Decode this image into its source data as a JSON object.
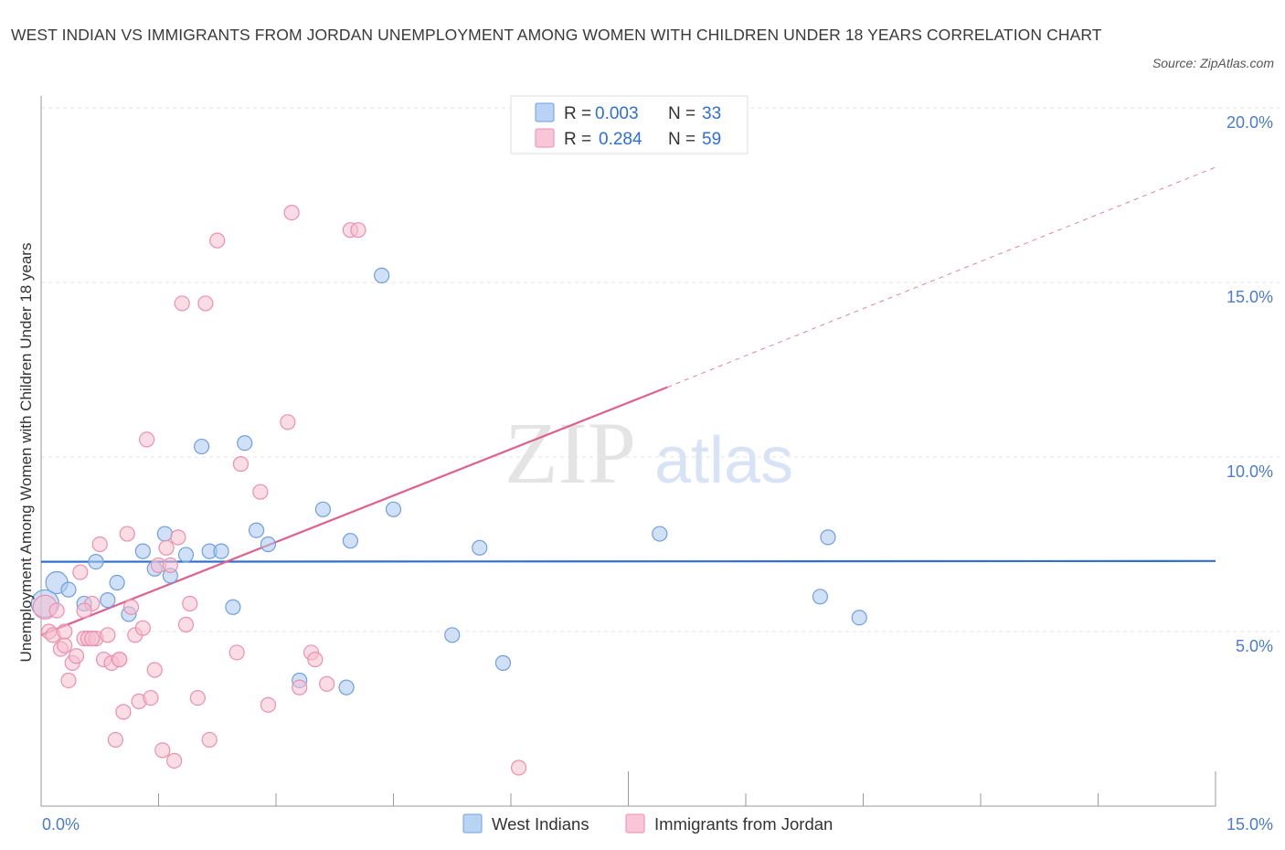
{
  "title": "WEST INDIAN VS IMMIGRANTS FROM JORDAN UNEMPLOYMENT AMONG WOMEN WITH CHILDREN UNDER 18 YEARS CORRELATION CHART",
  "source": "Source: ZipAtlas.com",
  "watermark": {
    "zip": "ZIP",
    "atlas": "atlas"
  },
  "legend_top": {
    "r_label": "R =",
    "n_label": "N =",
    "rows": [
      {
        "r": "0.003",
        "n": "33"
      },
      {
        "r": "0.284",
        "n": "59"
      }
    ]
  },
  "chart_data": {
    "type": "scatter",
    "title": "WEST INDIAN VS IMMIGRANTS FROM JORDAN UNEMPLOYMENT AMONG WOMEN WITH CHILDREN UNDER 18 YEARS CORRELATION CHART",
    "xlabel": "",
    "ylabel": "Unemployment Among Women with Children Under 18 years",
    "xlim": [
      0,
      15
    ],
    "ylim": [
      0,
      20
    ],
    "x_tick_labels": [
      "0.0%",
      "15.0%"
    ],
    "y_tick_labels": [
      "5.0%",
      "10.0%",
      "15.0%",
      "20.0%"
    ],
    "y_ticks": [
      5,
      10,
      15,
      20
    ],
    "grid": true,
    "legend_position": "top-center",
    "series": [
      {
        "name": "West Indians",
        "color": "#a9c8f0",
        "stroke": "#6f9fe0",
        "trend_color": "#2f6fd1",
        "trend": {
          "x": [
            0,
            15
          ],
          "y": [
            7.0,
            7.02
          ]
        },
        "points": [
          [
            0.05,
            5.8
          ],
          [
            0.2,
            6.4
          ],
          [
            0.35,
            6.2
          ],
          [
            0.55,
            5.8
          ],
          [
            0.7,
            7.0
          ],
          [
            0.85,
            5.9
          ],
          [
            0.97,
            6.4
          ],
          [
            1.12,
            5.5
          ],
          [
            1.3,
            7.3
          ],
          [
            1.45,
            6.8
          ],
          [
            1.58,
            7.8
          ],
          [
            1.65,
            6.6
          ],
          [
            1.85,
            7.2
          ],
          [
            2.05,
            10.3
          ],
          [
            2.15,
            7.3
          ],
          [
            2.3,
            7.3
          ],
          [
            2.45,
            5.7
          ],
          [
            2.6,
            10.4
          ],
          [
            2.75,
            7.9
          ],
          [
            2.9,
            7.5
          ],
          [
            3.3,
            3.6
          ],
          [
            3.6,
            8.5
          ],
          [
            3.9,
            3.4
          ],
          [
            3.95,
            7.6
          ],
          [
            4.35,
            15.2
          ],
          [
            4.5,
            8.5
          ],
          [
            5.25,
            4.9
          ],
          [
            5.6,
            7.4
          ],
          [
            5.9,
            4.1
          ],
          [
            7.9,
            7.8
          ],
          [
            9.95,
            6.0
          ],
          [
            10.05,
            7.7
          ],
          [
            10.45,
            5.4
          ]
        ]
      },
      {
        "name": "Immigrants from Jordan",
        "color": "#f6bfd0",
        "stroke": "#eb8fae",
        "trend_color": "#e0608c",
        "trend": {
          "x": [
            0,
            8.0
          ],
          "y": [
            4.9,
            12.0
          ]
        },
        "trend_dashed": {
          "x": [
            8.0,
            15
          ],
          "y": [
            12.0,
            18.3
          ]
        },
        "points": [
          [
            0.05,
            5.7
          ],
          [
            0.1,
            5.0
          ],
          [
            0.15,
            4.9
          ],
          [
            0.2,
            5.6
          ],
          [
            0.25,
            4.5
          ],
          [
            0.3,
            5.0
          ],
          [
            0.35,
            3.6
          ],
          [
            0.4,
            4.1
          ],
          [
            0.45,
            4.3
          ],
          [
            0.5,
            6.7
          ],
          [
            0.55,
            4.8
          ],
          [
            0.6,
            4.8
          ],
          [
            0.65,
            5.8
          ],
          [
            0.7,
            4.8
          ],
          [
            0.75,
            7.5
          ],
          [
            0.8,
            4.2
          ],
          [
            0.85,
            4.9
          ],
          [
            0.9,
            4.1
          ],
          [
            0.95,
            1.9
          ],
          [
            1.0,
            4.2
          ],
          [
            1.05,
            2.7
          ],
          [
            1.1,
            7.8
          ],
          [
            1.15,
            5.7
          ],
          [
            1.2,
            4.9
          ],
          [
            1.25,
            3.0
          ],
          [
            1.3,
            5.1
          ],
          [
            1.35,
            10.5
          ],
          [
            1.4,
            3.1
          ],
          [
            1.45,
            3.9
          ],
          [
            1.5,
            6.9
          ],
          [
            1.55,
            1.6
          ],
          [
            1.6,
            7.4
          ],
          [
            1.65,
            6.9
          ],
          [
            1.7,
            1.3
          ],
          [
            1.75,
            7.7
          ],
          [
            1.8,
            14.4
          ],
          [
            1.85,
            5.2
          ],
          [
            1.9,
            5.8
          ],
          [
            2.0,
            3.1
          ],
          [
            2.1,
            14.4
          ],
          [
            2.15,
            1.9
          ],
          [
            2.25,
            16.2
          ],
          [
            2.5,
            4.4
          ],
          [
            2.55,
            9.8
          ],
          [
            2.8,
            9.0
          ],
          [
            2.9,
            2.9
          ],
          [
            3.15,
            11.0
          ],
          [
            3.2,
            17.0
          ],
          [
            3.3,
            3.4
          ],
          [
            3.45,
            4.4
          ],
          [
            3.5,
            4.2
          ],
          [
            3.65,
            3.5
          ],
          [
            3.95,
            16.5
          ],
          [
            4.05,
            16.5
          ],
          [
            6.1,
            1.1
          ],
          [
            0.65,
            4.8
          ],
          [
            1.0,
            4.2
          ],
          [
            0.3,
            4.6
          ],
          [
            0.55,
            5.6
          ]
        ]
      }
    ]
  }
}
